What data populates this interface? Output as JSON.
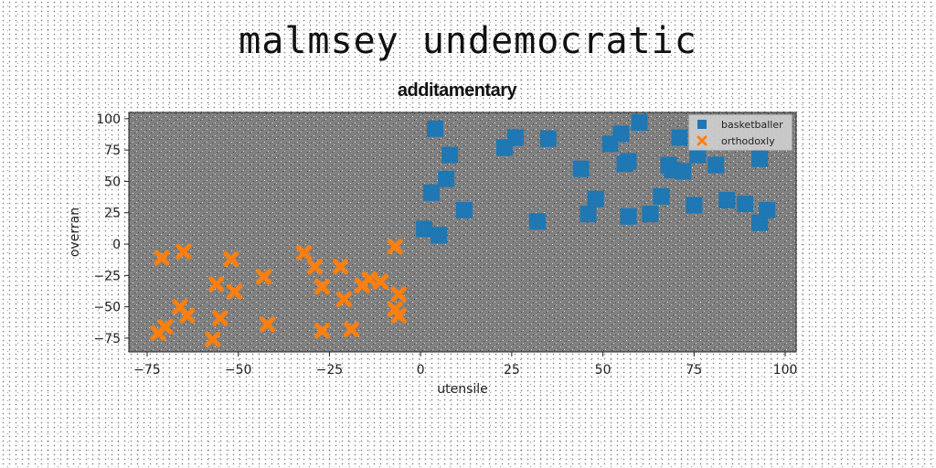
{
  "chart_data": {
    "type": "scatter",
    "title": "malmsey undemocratic",
    "subtitle": "additamentary",
    "xlabel": "utensile",
    "ylabel": "overran",
    "xlim": [
      -80,
      103
    ],
    "ylim": [
      -86,
      105
    ],
    "xticks": [
      -75,
      -50,
      -25,
      0,
      25,
      50,
      75,
      100
    ],
    "yticks": [
      -75,
      -50,
      -25,
      0,
      25,
      50,
      75,
      100
    ],
    "xtick_labels": [
      "−75",
      "−50",
      "−25",
      "0",
      "25",
      "50",
      "75",
      "100"
    ],
    "ytick_labels": [
      "−75",
      "−50",
      "−25",
      "0",
      "25",
      "50",
      "75",
      "100"
    ],
    "plot_background": "#808080",
    "legend_position": "top-right",
    "series": [
      {
        "name": "basketballer",
        "marker": "square",
        "color": "#1f77b4",
        "points": [
          [
            4,
            92
          ],
          [
            8,
            71
          ],
          [
            1,
            12
          ],
          [
            5,
            7
          ],
          [
            3,
            41
          ],
          [
            7,
            52
          ],
          [
            12,
            27
          ],
          [
            23,
            77
          ],
          [
            26,
            85
          ],
          [
            35,
            84
          ],
          [
            32,
            18
          ],
          [
            44,
            60
          ],
          [
            46,
            24
          ],
          [
            48,
            36
          ],
          [
            52,
            80
          ],
          [
            55,
            88
          ],
          [
            57,
            22
          ],
          [
            56,
            64
          ],
          [
            57,
            66
          ],
          [
            60,
            97
          ],
          [
            63,
            24
          ],
          [
            66,
            38
          ],
          [
            68,
            63
          ],
          [
            69,
            59
          ],
          [
            72,
            58
          ],
          [
            71,
            85
          ],
          [
            75,
            31
          ],
          [
            76,
            71
          ],
          [
            81,
            63
          ],
          [
            84,
            35
          ],
          [
            89,
            32
          ],
          [
            93,
            68
          ],
          [
            93,
            17
          ],
          [
            95,
            27
          ]
        ]
      },
      {
        "name": "orthodoxly",
        "marker": "x",
        "color": "#ff7f0e",
        "points": [
          [
            -71,
            -11
          ],
          [
            -65,
            -6
          ],
          [
            -72,
            -71
          ],
          [
            -70,
            -66
          ],
          [
            -66,
            -50
          ],
          [
            -64,
            -57
          ],
          [
            -57,
            -76
          ],
          [
            -56,
            -32
          ],
          [
            -55,
            -59
          ],
          [
            -52,
            -12
          ],
          [
            -51,
            -38
          ],
          [
            -43,
            -26
          ],
          [
            -42,
            -64
          ],
          [
            -32,
            -7
          ],
          [
            -29,
            -18
          ],
          [
            -27,
            -34
          ],
          [
            -27,
            -69
          ],
          [
            -22,
            -18
          ],
          [
            -21,
            -44
          ],
          [
            -19,
            -68
          ],
          [
            -16,
            -33
          ],
          [
            -14,
            -28
          ],
          [
            -11,
            -30
          ],
          [
            -7,
            -2
          ],
          [
            -6,
            -40
          ],
          [
            -7,
            -52
          ],
          [
            -6,
            -57
          ]
        ]
      }
    ]
  }
}
